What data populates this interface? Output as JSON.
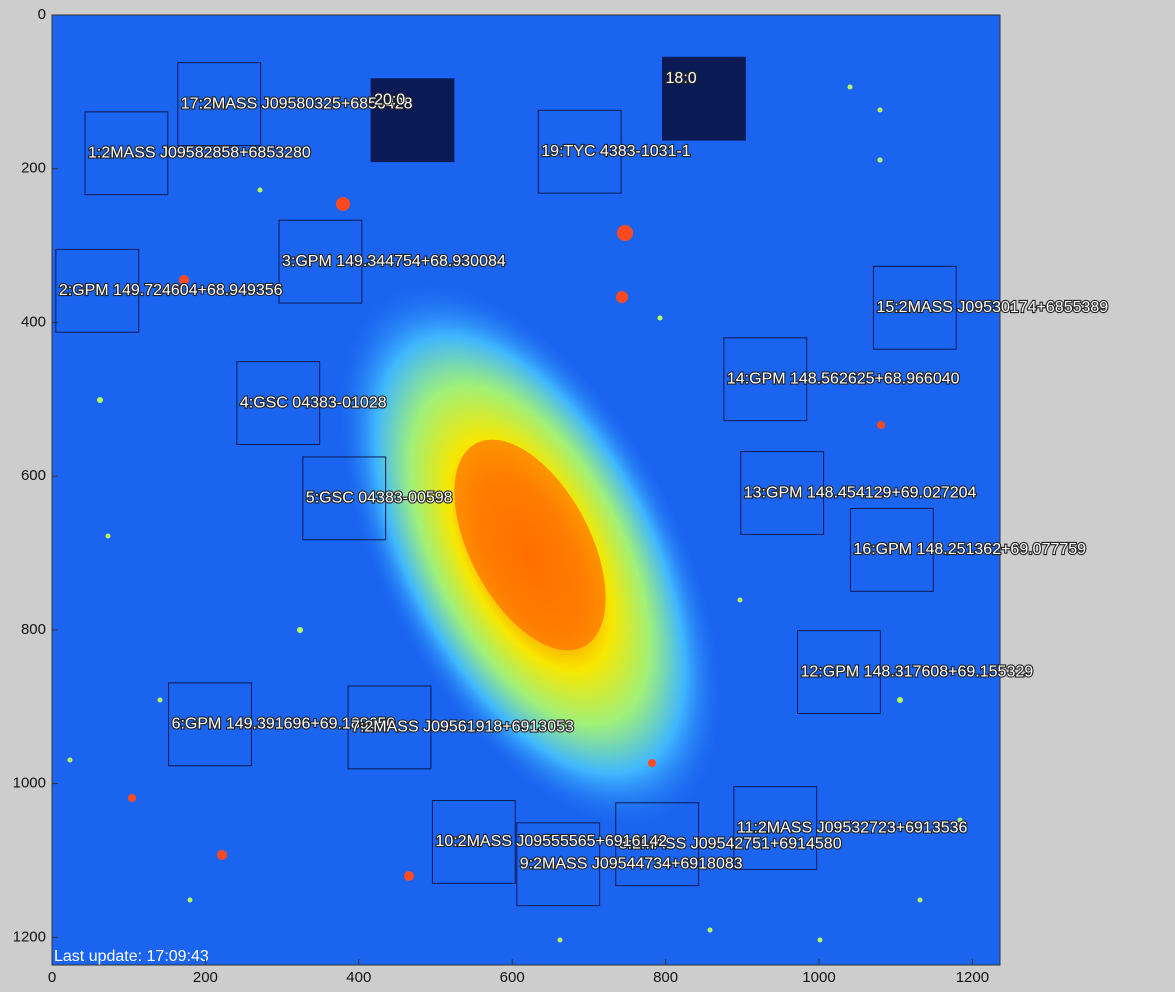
{
  "chart_data": {
    "type": "image",
    "xlim": [
      0,
      1236
    ],
    "ylim": [
      0,
      1236
    ],
    "xticks": [
      0,
      200,
      400,
      600,
      800,
      1000,
      1200
    ],
    "yticks": [
      0,
      200,
      400,
      600,
      800,
      1000,
      1200
    ],
    "y_inverted": true,
    "box_size": 108,
    "box_color": "#0a1a55",
    "annotation": "Last update: 17:09:43",
    "sources": [
      {
        "label": "1:2MASS J09582858+6853280",
        "x": 97,
        "y": 180
      },
      {
        "label": "2:GPM 149.724604+68.949356",
        "x": 59,
        "y": 359
      },
      {
        "label": "3:GPM 149.344754+68.930084",
        "x": 350,
        "y": 321
      },
      {
        "label": "4:GSC 04383-01028",
        "x": 295,
        "y": 505
      },
      {
        "label": "5:GSC 04383-00598",
        "x": 381,
        "y": 629
      },
      {
        "label": "6:GPM 149.391696+69.189650",
        "x": 206,
        "y": 923
      },
      {
        "label": "7:2MASS J09561918+6913053",
        "x": 440,
        "y": 927
      },
      {
        "label": "8:2MASS J09542751+6914580",
        "x": 789,
        "y": 1079
      },
      {
        "label": "9:2MASS J09544734+6918083",
        "x": 660,
        "y": 1105
      },
      {
        "label": "10:2MASS J09555565+6916142",
        "x": 550,
        "y": 1076
      },
      {
        "label": "11:2MASS J09532723+6913536",
        "x": 943,
        "y": 1058
      },
      {
        "label": "12:GPM 148.317608+69.155329",
        "x": 1026,
        "y": 855
      },
      {
        "label": "13:GPM 148.454129+69.027204",
        "x": 952,
        "y": 622
      },
      {
        "label": "14:GPM 148.562625+68.966040",
        "x": 930,
        "y": 474
      },
      {
        "label": "15:2MASS J09530174+6855389",
        "x": 1125,
        "y": 381
      },
      {
        "label": "16:GPM 148.251362+69.077759",
        "x": 1095,
        "y": 696
      },
      {
        "label": "17:2MASS J09580325+6850428",
        "x": 218,
        "y": 116
      },
      {
        "label": "18:0",
        "x": 850,
        "y": 109,
        "filled": true
      },
      {
        "label": "19:TYC 4383-1031-1",
        "x": 688,
        "y": 178
      },
      {
        "label": "20:0",
        "x": 470,
        "y": 137,
        "filled": true
      }
    ]
  }
}
